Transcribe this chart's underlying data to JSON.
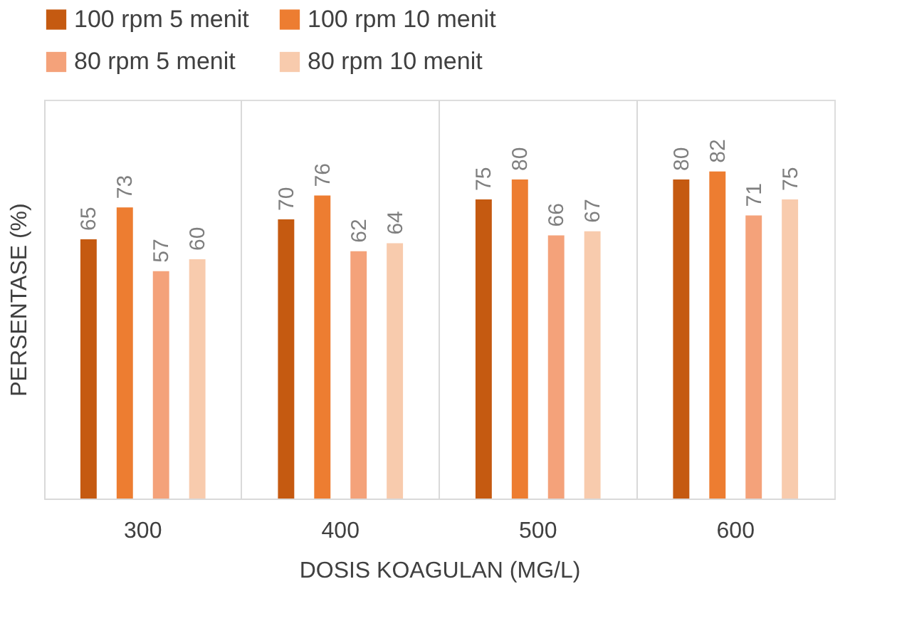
{
  "chart_data": {
    "type": "bar",
    "xlabel": "DOSIS KOAGULAN (MG/L)",
    "ylabel": "PERSENTASE (%)",
    "categories": [
      "300",
      "400",
      "500",
      "600"
    ],
    "series": [
      {
        "name": "100 rpm 5 menit",
        "color": "#c55a11",
        "values": [
          65,
          70,
          75,
          80
        ]
      },
      {
        "name": "100 rpm 10 menit",
        "color": "#ed7d31",
        "values": [
          73,
          76,
          80,
          82
        ]
      },
      {
        "name": "80 rpm 5 menit",
        "color": "#f4a27a",
        "values": [
          57,
          62,
          66,
          71
        ]
      },
      {
        "name": "80 rpm 10 menit",
        "color": "#f8cbad",
        "values": [
          60,
          64,
          67,
          75
        ]
      }
    ],
    "ylim": [
      0,
      100
    ],
    "data_labels": true,
    "legend": "top",
    "grid": "x",
    "tick_labels": "x"
  }
}
